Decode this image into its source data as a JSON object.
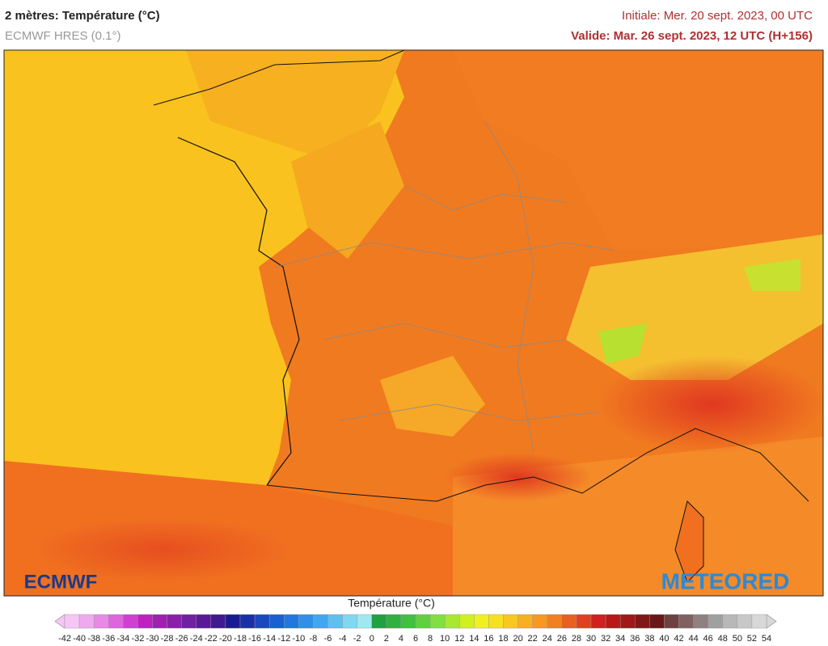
{
  "header": {
    "title": "2 mètres: Température (°C)",
    "subtitle": "ECMWF HRES (0.1°)",
    "initial": "Initiale: Mer. 20 sept. 2023, 00 UTC",
    "valid": "Valide: Mar. 26 sept. 2023, 12 UTC (H+156)"
  },
  "logos": {
    "left": "ECMWF",
    "right": "METEORED"
  },
  "colorbar": {
    "title": "Température (°C)",
    "ticks": [
      -42,
      -40,
      -38,
      -36,
      -34,
      -32,
      -30,
      -28,
      -26,
      -24,
      -22,
      -20,
      -18,
      -16,
      -14,
      -12,
      -10,
      -8,
      -6,
      -4,
      -2,
      0,
      2,
      4,
      6,
      8,
      10,
      12,
      14,
      16,
      18,
      20,
      22,
      24,
      26,
      28,
      30,
      32,
      34,
      36,
      38,
      40,
      42,
      44,
      46,
      48,
      50,
      52,
      54
    ],
    "colors": [
      "#f5c6f5",
      "#eeaaee",
      "#e68ae6",
      "#dd66dd",
      "#d040d0",
      "#c020c0",
      "#a020b0",
      "#8a20a8",
      "#7020a0",
      "#5a1a98",
      "#401890",
      "#1a1a90",
      "#1a30a8",
      "#1a48c0",
      "#1a60d0",
      "#2078e0",
      "#3090e8",
      "#40a8f0",
      "#60c0f0",
      "#80d8f0",
      "#a0e8f0",
      "#20a040",
      "#30b040",
      "#40c040",
      "#60d040",
      "#80e040",
      "#a8e830",
      "#d0f020",
      "#f0f020",
      "#f8e020",
      "#f8c820",
      "#f8b020",
      "#f89820",
      "#f08020",
      "#e86020",
      "#e04020",
      "#d02020",
      "#b81818",
      "#a01818",
      "#801818",
      "#681818",
      "#704040",
      "#806060",
      "#908080",
      "#a0a0a0",
      "#b8b8b8",
      "#c8c8c8",
      "#d8d8d8"
    ]
  }
}
